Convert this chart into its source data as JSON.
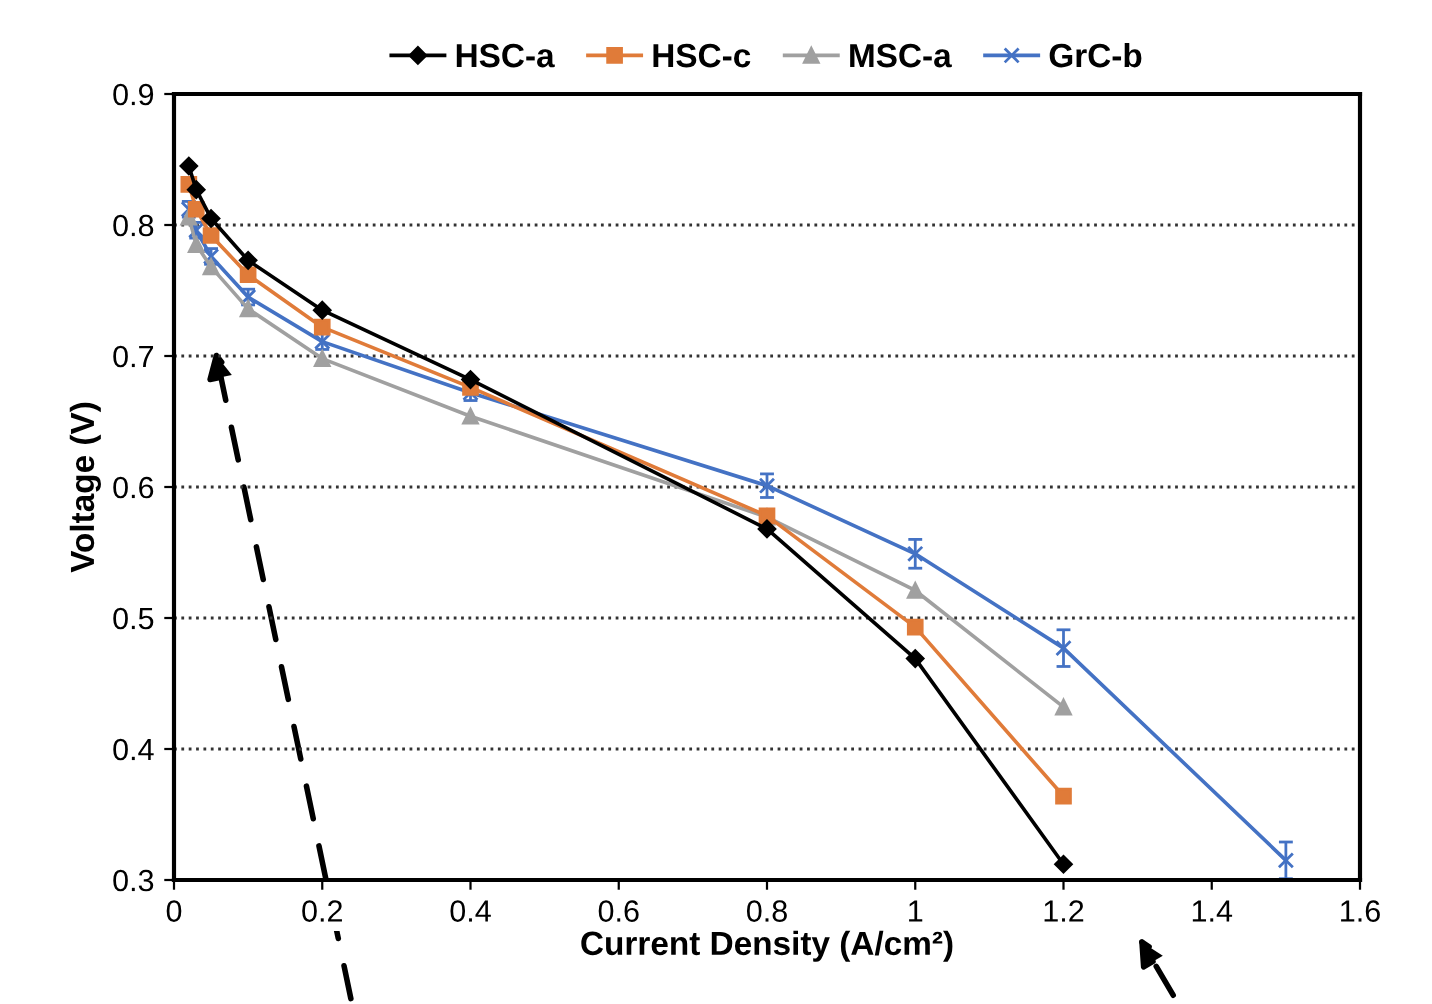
{
  "chart_data": {
    "type": "line",
    "xlabel": "Current Density (A/cm²)",
    "ylabel": "Voltage (V)",
    "x": [
      0.02,
      0.03,
      0.05,
      0.1,
      0.2,
      0.4,
      0.8,
      1.0,
      1.2
    ],
    "series": [
      {
        "name": "HSC-a",
        "color": "#000000",
        "marker": "diamond",
        "values": [
          0.845,
          0.827,
          0.805,
          0.773,
          0.735,
          0.682,
          0.568,
          0.469,
          0.312
        ]
      },
      {
        "name": "HSC-c",
        "color": "#e07b39",
        "marker": "square",
        "values": [
          0.831,
          0.812,
          0.792,
          0.762,
          0.722,
          0.676,
          0.578,
          0.493,
          0.364
        ]
      },
      {
        "name": "MSC-a",
        "color": "#a0a0a0",
        "marker": "triangle",
        "values": [
          0.806,
          0.785,
          0.768,
          0.736,
          0.698,
          0.654,
          0.577,
          0.521,
          0.432
        ]
      },
      {
        "name": "GrC-b",
        "color": "#4472c4",
        "marker": "cross",
        "x": [
          0.02,
          0.03,
          0.05,
          0.1,
          0.2,
          0.4,
          0.8,
          1.0,
          1.2,
          1.5
        ],
        "values": [
          0.812,
          0.796,
          0.776,
          0.745,
          0.711,
          0.672,
          0.601,
          0.549,
          0.477,
          0.315
        ],
        "errors": [
          0.006,
          0.006,
          0.006,
          0.006,
          0.006,
          0.006,
          0.009,
          0.011,
          0.014,
          0.014
        ]
      }
    ],
    "xlim": [
      0,
      1.6
    ],
    "xticks": [
      0,
      0.2,
      0.4,
      0.6,
      0.8,
      1,
      1.2,
      1.4,
      1.6
    ],
    "ylim": [
      0.3,
      0.9
    ],
    "yticks": [
      0.3,
      0.4,
      0.5,
      0.6,
      0.7,
      0.8,
      0.9
    ],
    "grid": "y",
    "legend": "top",
    "line_style": "solid"
  }
}
